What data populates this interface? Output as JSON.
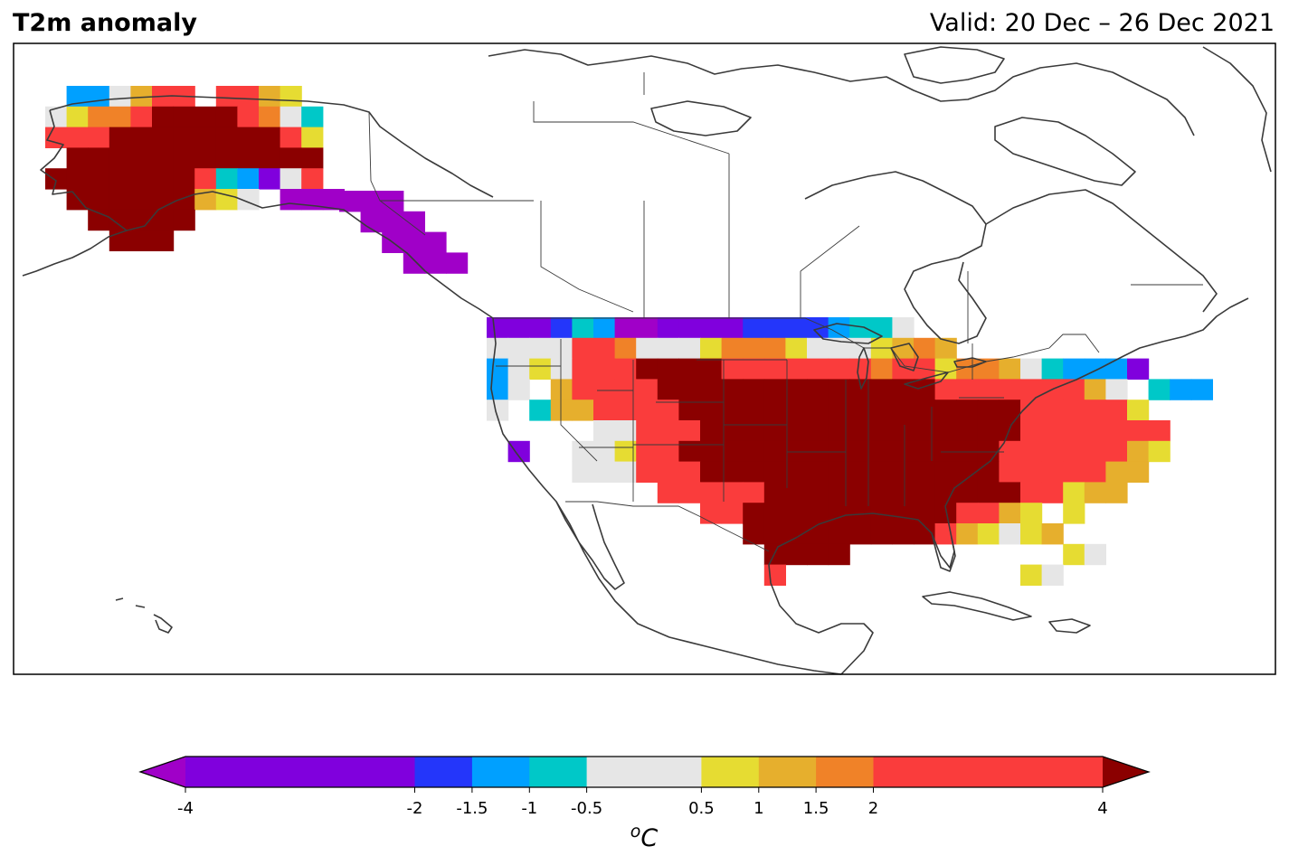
{
  "title": "T2m anomaly",
  "valid": "Valid: 20 Dec – 26 Dec 2021",
  "colorbar": {
    "unit": "oC",
    "unit_main": "o",
    "unit_sub": "C",
    "extend": "both",
    "bounds": [
      -4,
      -2,
      -1.5,
      -1,
      -0.5,
      0.5,
      1,
      1.5,
      2,
      4
    ],
    "tick_labels": [
      "-4",
      "-2",
      "-1.5",
      "-1",
      "-0.5",
      "0.5",
      "1",
      "1.5",
      "2",
      "4"
    ],
    "colors": [
      "#8000dd",
      "#2436fa",
      "#00a0ff",
      "#00c8c8",
      "#e6e6e6",
      "#e6dc32",
      "#e6af2d",
      "#f08228",
      "#fa3c3c"
    ],
    "under_color": "#a000c8",
    "over_color": "#8b0000"
  },
  "map_data": {
    "region": "North America",
    "variable": "2 m temperature anomaly",
    "palette_key": {
      "P": "#8000dd",
      "B": "#2436fa",
      "S": "#00a0ff",
      "C": "#00c8c8",
      "G": "#e6e6e6",
      "Y": "#e6dc32",
      "A": "#e6af2d",
      "O": "#f08228",
      "R": "#fa3c3c",
      "D": "#8b0000",
      "M": "#a000c8"
    },
    "alaska_rows": [
      "-SSGARR-RRAY",
      "GYOORDDDDROGC",
      "RRRDDDDDDDDRY",
      "-DDDDDDDDDDDD",
      "DDDDDDDRCSPGR",
      "-DDDDDDAYG-MMM",
      "--DDDDD",
      "---DDD"
    ],
    "bc_rows": [
      "MMM",
      "-MMM",
      "--MMM",
      "---MMM"
    ],
    "conus_rows": [
      "PPPBCSMMPPPPBBBBSCCG",
      "GGGGRROGGGYOOOYGGGYAOA",
      "SGYGRRRDDDDRRRRRRRORRYOOAGCSSSP",
      "SG-ARRRRDDDDDDDDDDDDDRRRRRRRAG-CSS",
      "G-CAARRRRDDDDDDDDDDDDDDDDRRRRRY",
      "-----GGRRRDDDDDDDDDDDDDDDRRRRRRR",
      "-P--GGYRRDDDDDDDDDDDDDDDRRRRRRAY",
      "----GGGRRRDDDDDDDDDDDDDDRRRRRAA",
      "--------RRRRRDDDDDDDDDDDDRRYAA",
      "----------RRDDDDDDDDDDRRAY-Y",
      "------------DDDDDDDDDRAYGYA",
      "-------------DDDD----------YG",
      "-------------R-----------YG"
    ]
  }
}
